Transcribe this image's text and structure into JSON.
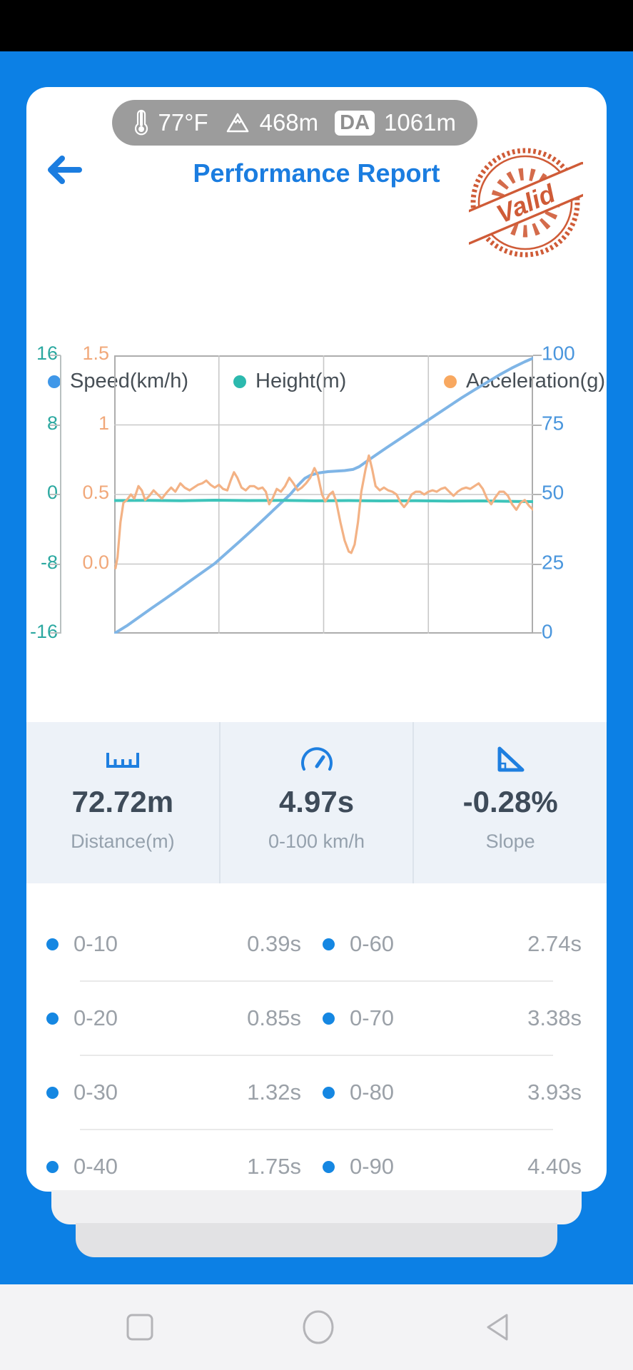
{
  "status_pill": {
    "temperature": "77°F",
    "altitude": "468m",
    "da_label": "DA",
    "da_value": "1061m"
  },
  "header": {
    "title": "Performance Report",
    "stamp_text": "Valid"
  },
  "legend": [
    {
      "label": "Speed(km/h)",
      "color": "#3f97e8"
    },
    {
      "label": "Height(m)",
      "color": "#2cb9ae"
    },
    {
      "label": "Acceleration(g)",
      "color": "#f8a860"
    }
  ],
  "chart_data": {
    "type": "line",
    "x_range_pct": [
      0,
      100
    ],
    "grid": true,
    "axes": {
      "speed": {
        "side": "right",
        "ticks": [
          "100",
          "75",
          "50",
          "25",
          "0"
        ],
        "range": [
          0,
          100
        ],
        "color": "#4a96dd"
      },
      "height": {
        "side": "left-outer",
        "ticks": [
          "16",
          "8",
          "0",
          "-8",
          "-16"
        ],
        "range": [
          -16,
          16
        ],
        "color": "#2ba8a0"
      },
      "accel": {
        "side": "left-inner",
        "ticks": [
          "1.5",
          "1",
          "0.5",
          "0.0"
        ],
        "range": [
          -0.5,
          1.5
        ],
        "color": "#f1a87a"
      }
    },
    "series": [
      {
        "name": "Speed(km/h)",
        "axis": "speed",
        "color": "#7fb5e6",
        "width": 4,
        "points": [
          [
            0,
            0
          ],
          [
            3,
            2.8
          ],
          [
            6,
            6
          ],
          [
            9,
            9.2
          ],
          [
            12,
            12.3
          ],
          [
            15,
            15.5
          ],
          [
            18,
            18.8
          ],
          [
            21,
            22
          ],
          [
            24,
            25.2
          ],
          [
            27,
            29.2
          ],
          [
            30,
            33.2
          ],
          [
            33,
            37.3
          ],
          [
            36,
            41.5
          ],
          [
            39,
            45.8
          ],
          [
            42,
            50
          ],
          [
            44,
            53.5
          ],
          [
            45.5,
            55.8
          ],
          [
            47,
            57
          ],
          [
            49,
            57.8
          ],
          [
            51,
            58.2
          ],
          [
            53,
            58.4
          ],
          [
            55,
            58.6
          ],
          [
            57,
            59
          ],
          [
            58.5,
            60
          ],
          [
            60,
            61.6
          ],
          [
            62,
            63.7
          ],
          [
            65,
            66.8
          ],
          [
            68,
            69.8
          ],
          [
            71,
            72.8
          ],
          [
            74,
            75.8
          ],
          [
            77,
            78.8
          ],
          [
            80,
            81.8
          ],
          [
            83,
            84.8
          ],
          [
            86,
            87.6
          ],
          [
            89,
            90.3
          ],
          [
            92,
            93
          ],
          [
            95,
            95.5
          ],
          [
            98,
            97.7
          ],
          [
            100,
            99
          ]
        ]
      },
      {
        "name": "Height(m)",
        "axis": "height",
        "color": "#3ec4ba",
        "width": 4,
        "points": [
          [
            0,
            -0.7
          ],
          [
            8,
            -0.68
          ],
          [
            16,
            -0.72
          ],
          [
            24,
            -0.66
          ],
          [
            32,
            -0.7
          ],
          [
            40,
            -0.68
          ],
          [
            48,
            -0.73
          ],
          [
            56,
            -0.7
          ],
          [
            64,
            -0.74
          ],
          [
            72,
            -0.72
          ],
          [
            80,
            -0.76
          ],
          [
            88,
            -0.74
          ],
          [
            96,
            -0.8
          ],
          [
            100,
            -0.82
          ]
        ]
      },
      {
        "name": "Acceleration(g)",
        "axis": "accel",
        "color": "#f3b285",
        "width": 3.2,
        "points": [
          [
            0.3,
            -0.03
          ],
          [
            0.8,
            0.05
          ],
          [
            1.5,
            0.3
          ],
          [
            2.2,
            0.44
          ],
          [
            3,
            0.46
          ],
          [
            4,
            0.5
          ],
          [
            4.8,
            0.47
          ],
          [
            5.8,
            0.56
          ],
          [
            6.6,
            0.53
          ],
          [
            7.4,
            0.46
          ],
          [
            8.4,
            0.49
          ],
          [
            9.4,
            0.53
          ],
          [
            10.4,
            0.5
          ],
          [
            11.4,
            0.47
          ],
          [
            12.4,
            0.51
          ],
          [
            13.6,
            0.55
          ],
          [
            14.6,
            0.52
          ],
          [
            15.8,
            0.58
          ],
          [
            16.8,
            0.55
          ],
          [
            18,
            0.53
          ],
          [
            19,
            0.55
          ],
          [
            20,
            0.57
          ],
          [
            21,
            0.58
          ],
          [
            22,
            0.6
          ],
          [
            23,
            0.57
          ],
          [
            24,
            0.55
          ],
          [
            25,
            0.57
          ],
          [
            26,
            0.54
          ],
          [
            27,
            0.53
          ],
          [
            27.8,
            0.6
          ],
          [
            28.6,
            0.66
          ],
          [
            29.4,
            0.62
          ],
          [
            30.4,
            0.55
          ],
          [
            31.4,
            0.53
          ],
          [
            32.4,
            0.56
          ],
          [
            33.4,
            0.56
          ],
          [
            34.4,
            0.54
          ],
          [
            35.4,
            0.55
          ],
          [
            36.2,
            0.52
          ],
          [
            37,
            0.43
          ],
          [
            37.8,
            0.47
          ],
          [
            38.8,
            0.54
          ],
          [
            39.8,
            0.52
          ],
          [
            40.8,
            0.56
          ],
          [
            41.8,
            0.62
          ],
          [
            42.8,
            0.58
          ],
          [
            43.8,
            0.53
          ],
          [
            44.8,
            0.55
          ],
          [
            45.8,
            0.58
          ],
          [
            46.8,
            0.62
          ],
          [
            47.8,
            0.69
          ],
          [
            48.6,
            0.64
          ],
          [
            49.6,
            0.5
          ],
          [
            50.4,
            0.45
          ],
          [
            51.4,
            0.5
          ],
          [
            52.2,
            0.52
          ],
          [
            53,
            0.45
          ],
          [
            54,
            0.3
          ],
          [
            55,
            0.17
          ],
          [
            56,
            0.09
          ],
          [
            56.6,
            0.08
          ],
          [
            57.4,
            0.14
          ],
          [
            58.2,
            0.3
          ],
          [
            59,
            0.52
          ],
          [
            60,
            0.68
          ],
          [
            60.8,
            0.78
          ],
          [
            61.6,
            0.68
          ],
          [
            62.4,
            0.56
          ],
          [
            63.4,
            0.53
          ],
          [
            64.4,
            0.55
          ],
          [
            65.4,
            0.53
          ],
          [
            66.4,
            0.52
          ],
          [
            67.4,
            0.5
          ],
          [
            68.4,
            0.44
          ],
          [
            69.2,
            0.41
          ],
          [
            70,
            0.44
          ],
          [
            71,
            0.5
          ],
          [
            72,
            0.52
          ],
          [
            73,
            0.52
          ],
          [
            74,
            0.5
          ],
          [
            75,
            0.52
          ],
          [
            76,
            0.53
          ],
          [
            77,
            0.52
          ],
          [
            78,
            0.54
          ],
          [
            79,
            0.55
          ],
          [
            80,
            0.52
          ],
          [
            81,
            0.49
          ],
          [
            82,
            0.52
          ],
          [
            83,
            0.54
          ],
          [
            84,
            0.55
          ],
          [
            85,
            0.54
          ],
          [
            86,
            0.56
          ],
          [
            87,
            0.58
          ],
          [
            88,
            0.54
          ],
          [
            89,
            0.47
          ],
          [
            90,
            0.43
          ],
          [
            91,
            0.48
          ],
          [
            92,
            0.52
          ],
          [
            93,
            0.52
          ],
          [
            94,
            0.49
          ],
          [
            95,
            0.43
          ],
          [
            96,
            0.39
          ],
          [
            97,
            0.44
          ],
          [
            98,
            0.46
          ],
          [
            99,
            0.42
          ],
          [
            100,
            0.39
          ]
        ]
      }
    ]
  },
  "stats": [
    {
      "icon": "ruler-icon",
      "value": "72.72m",
      "label": "Distance(m)"
    },
    {
      "icon": "speedometer-icon",
      "value": "4.97s",
      "label": "0-100 km/h"
    },
    {
      "icon": "slope-icon",
      "value": "-0.28%",
      "label": "Slope"
    }
  ],
  "table": {
    "rows": [
      {
        "left_label": "0-10",
        "left_value": "0.39s",
        "right_label": "0-60",
        "right_value": "2.74s"
      },
      {
        "left_label": "0-20",
        "left_value": "0.85s",
        "right_label": "0-70",
        "right_value": "3.38s"
      },
      {
        "left_label": "0-30",
        "left_value": "1.32s",
        "right_label": "0-80",
        "right_value": "3.93s"
      },
      {
        "left_label": "0-40",
        "left_value": "1.75s",
        "right_label": "0-90",
        "right_value": "4.40s"
      }
    ]
  },
  "colors": {
    "background": "#0c80e5",
    "accent_blue": "#1b7de0",
    "stamp_red": "#cc4f28",
    "table_dot": "#1587e2"
  }
}
